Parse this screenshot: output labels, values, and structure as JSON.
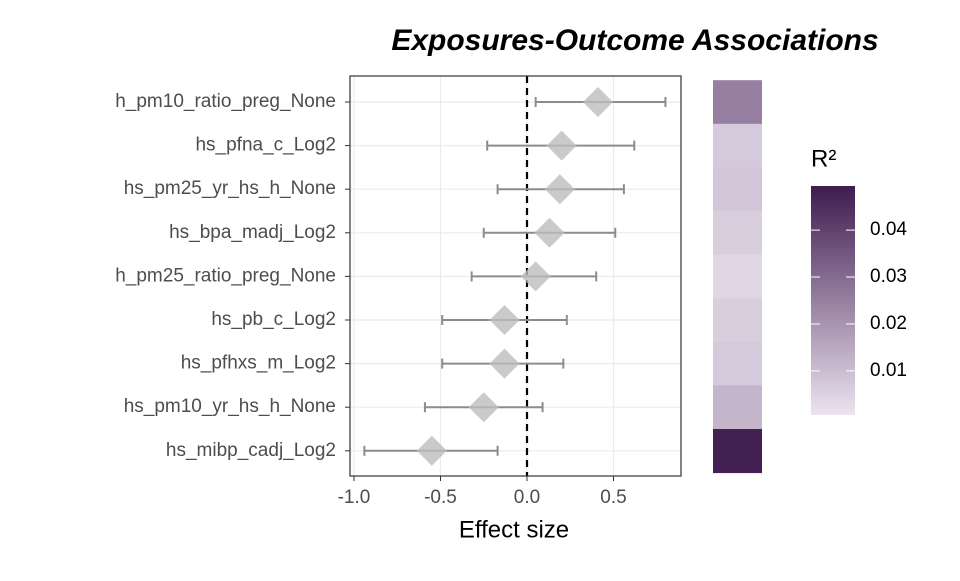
{
  "chart_data": [
    {
      "type": "forest",
      "title": "Exposures-Outcome Associations",
      "x_label": "Effect size",
      "categories": [
        "h_pm10_ratio_preg_None",
        "hs_pfna_c_Log2",
        "hs_pm25_yr_hs_h_None",
        "hs_bpa_madj_Log2",
        "h_pm25_ratio_preg_None",
        "hs_pb_c_Log2",
        "hs_pfhxs_m_Log2",
        "hs_pm10_yr_hs_h_None",
        "hs_mibp_cadj_Log2"
      ],
      "values": [
        0.41,
        0.2,
        0.19,
        0.13,
        0.05,
        -0.13,
        -0.13,
        -0.25,
        -0.55
      ],
      "lower": [
        0.05,
        -0.23,
        -0.17,
        -0.25,
        -0.32,
        -0.49,
        -0.49,
        -0.59,
        -0.94
      ],
      "upper": [
        0.8,
        0.62,
        0.56,
        0.51,
        0.4,
        0.23,
        0.21,
        0.09,
        -0.17
      ],
      "xlim": [
        -1.023,
        0.89
      ],
      "xticks": [
        {
          "value": -1,
          "label": "-1.0"
        },
        -0.5,
        {
          "value": 0,
          "label": "0.0"
        },
        0.5
      ],
      "ref_line": 0,
      "color": "#bdbdbd",
      "error_color": "#8c8c8c",
      "grid": true
    },
    {
      "type": "heatmap",
      "legend_title": "R²",
      "values": [
        0.025,
        0.007,
        0.008,
        0.006,
        0.004,
        0.006,
        0.007,
        0.012,
        0.048
      ],
      "clim": [
        0.0006,
        0.0494
      ],
      "cticks": [
        0.01,
        0.02,
        0.03,
        0.04
      ],
      "colors": [
        "#ece4f0",
        "#3f1b4f"
      ]
    }
  ]
}
